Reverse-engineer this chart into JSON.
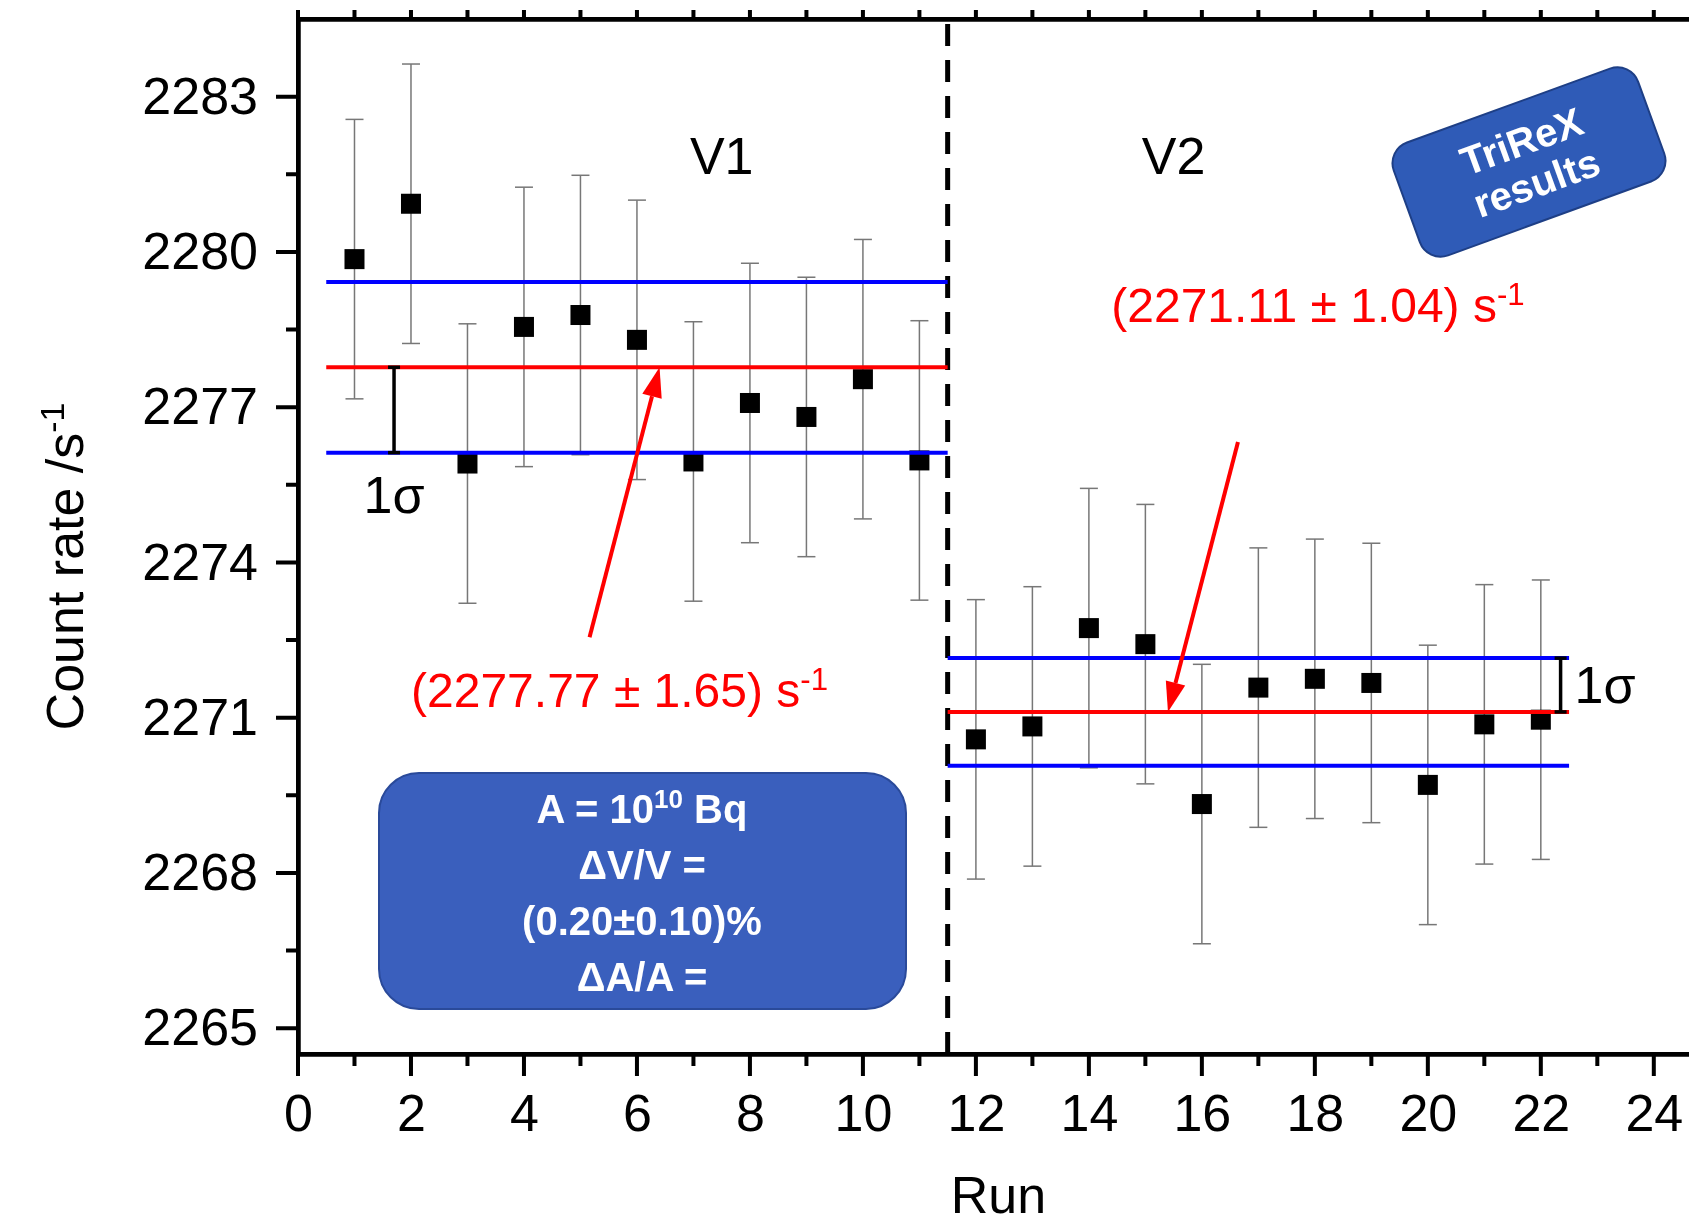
{
  "chart_data": {
    "type": "scatter",
    "xlabel": "Run",
    "ylabel": "Count rate /s$^{-1}$",
    "xlim": [
      0,
      24.8
    ],
    "ylim": [
      2264.5,
      2284.5
    ],
    "xticks": [
      0,
      {
        "value": 1,
        "label": null
      },
      2,
      {
        "value": 3,
        "label": null
      },
      4,
      {
        "value": 5,
        "label": null
      },
      6,
      {
        "value": 7,
        "label": null
      },
      8,
      {
        "value": 9,
        "label": null
      },
      10,
      {
        "value": 11,
        "label": null
      },
      12,
      {
        "value": 13,
        "label": null
      },
      14,
      {
        "value": 15,
        "label": null
      },
      16,
      {
        "value": 17,
        "label": null
      },
      18,
      {
        "value": 19,
        "label": null
      },
      20,
      {
        "value": 21,
        "label": null
      },
      22,
      {
        "value": 23,
        "label": null
      },
      24
    ],
    "yticks": [
      2265,
      {
        "value": 2266.5,
        "label": null
      },
      2268,
      {
        "value": 2269.5,
        "label": null
      },
      2271,
      {
        "value": 2272.5,
        "label": null
      },
      2274,
      {
        "value": 2275.5,
        "label": null
      },
      2277,
      {
        "value": 2278.5,
        "label": null
      },
      2280,
      {
        "value": 2281.5,
        "label": null
      },
      2283
    ],
    "grid": false,
    "series": [
      {
        "type": "scatter",
        "marker": "square",
        "color": "#000000",
        "x": [
          1,
          2,
          3,
          4,
          5,
          6,
          7,
          8,
          9,
          10,
          11,
          12,
          13,
          14,
          15,
          16,
          17,
          18,
          19,
          20,
          21,
          22
        ],
        "values": [
          2279.86,
          2280.93,
          2275.91,
          2278.55,
          2278.78,
          2278.3,
          2275.95,
          2277.08,
          2276.81,
          2277.54,
          2275.97,
          2270.58,
          2270.83,
          2272.73,
          2272.42,
          2269.33,
          2271.58,
          2271.75,
          2271.67,
          2269.7,
          2270.87,
          2270.96
        ],
        "errors": [
          2.7,
          2.7,
          2.7,
          2.7,
          2.7,
          2.7,
          2.7,
          2.7,
          2.7,
          2.7,
          2.7,
          2.7,
          2.7,
          2.7,
          2.7,
          2.7,
          2.7,
          2.7,
          2.7,
          2.7,
          2.7,
          2.7
        ]
      },
      {
        "type": "line",
        "color": "#0000ff",
        "x": [
          0.5,
          11.5
        ],
        "values": [
          2279.42,
          2279.42
        ]
      },
      {
        "type": "line",
        "color": "#ff0000",
        "x": [
          0.5,
          11.5
        ],
        "values": [
          2277.77,
          2277.77
        ]
      },
      {
        "type": "line",
        "color": "#0000ff",
        "x": [
          0.5,
          11.5
        ],
        "values": [
          2276.12,
          2276.12
        ]
      },
      {
        "type": "line",
        "color": "#0000ff",
        "x": [
          11.5,
          22.5
        ],
        "values": [
          2272.15,
          2272.15
        ]
      },
      {
        "type": "line",
        "color": "#ff0000",
        "x": [
          11.5,
          22.5
        ],
        "values": [
          2271.11,
          2271.11
        ]
      },
      {
        "type": "line",
        "color": "#0000ff",
        "x": [
          11.5,
          22.5
        ],
        "values": [
          2270.07,
          2270.07
        ]
      }
    ],
    "ref_lines": [
      {
        "axis": "x",
        "value": 11.5,
        "color": "#000000",
        "line_style": "dashed"
      }
    ],
    "annotations": [
      "V1",
      "V2",
      {
        "text": "1σ",
        "x": 1.7,
        "y": 2276.12
      },
      {
        "text": "1σ",
        "x": 22.35,
        "y": 2272.15
      },
      "(2277.77 ± 1.65) s$^{-1}$",
      "(2271.11 ± 1.04) s$^{-1}$",
      "TriReX results",
      "A = 10$^{10}$ Bq",
      "ΔV/V =",
      "(0.20±0.10)%",
      "ΔA/A ="
    ]
  }
}
